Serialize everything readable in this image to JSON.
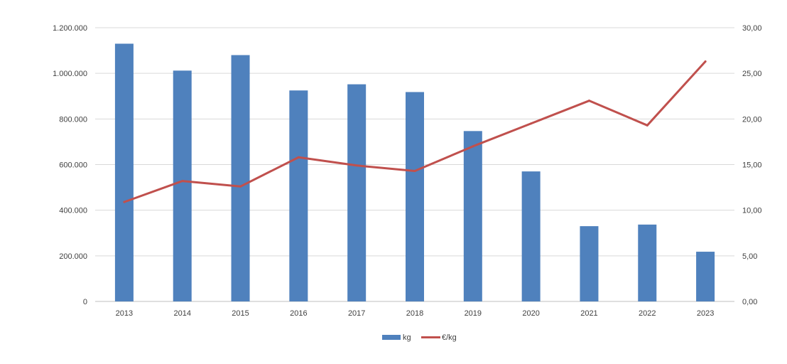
{
  "chart_data": {
    "type": "bar",
    "categories": [
      "2013",
      "2014",
      "2015",
      "2016",
      "2017",
      "2018",
      "2019",
      "2020",
      "2021",
      "2022",
      "2023"
    ],
    "series": [
      {
        "name": "kg",
        "type": "bar",
        "axis": "left",
        "color": "#4F81BD",
        "values": [
          1130000,
          1012000,
          1080000,
          925000,
          952000,
          918000,
          747000,
          570000,
          330000,
          337000,
          218000
        ]
      },
      {
        "name": "€/kg",
        "type": "line",
        "axis": "right",
        "color": "#C0504D",
        "values": [
          10.9,
          13.2,
          12.6,
          15.8,
          14.9,
          14.3,
          17.0,
          19.5,
          22.0,
          19.3,
          26.3
        ]
      }
    ],
    "y_left": {
      "ylim": [
        0,
        1200000
      ],
      "ticks": [
        "0",
        "200.000",
        "400.000",
        "600.000",
        "800.000",
        "1.000.000",
        "1.200.000"
      ]
    },
    "y_right": {
      "ylim": [
        0,
        30
      ],
      "ticks": [
        "0,00",
        "5,00",
        "10,00",
        "15,00",
        "20,00",
        "25,00",
        "30,00"
      ]
    },
    "grid": true,
    "legend": "bottom-center",
    "title": "",
    "xlabel": "",
    "ylabel": ""
  }
}
